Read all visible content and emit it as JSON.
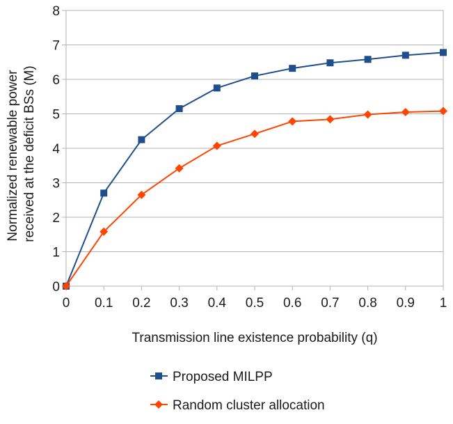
{
  "chart_data": {
    "type": "line",
    "title": "",
    "xlabel": "Transmission line existence probability (q)",
    "ylabel_lines": [
      "Normalized renewable power",
      "received at the deficit BSs (M)"
    ],
    "xlim": [
      0,
      1
    ],
    "ylim": [
      0,
      8
    ],
    "x_ticks": [
      "0",
      "0.1",
      "0.2",
      "0.3",
      "0.4",
      "0.5",
      "0.6",
      "0.7",
      "0.8",
      "0.9",
      "1"
    ],
    "y_ticks": [
      "0",
      "1",
      "2",
      "3",
      "4",
      "5",
      "6",
      "7",
      "8"
    ],
    "grid": "horizontal",
    "legend_position": "bottom",
    "x": [
      0,
      0.1,
      0.2,
      0.3,
      0.4,
      0.5,
      0.6,
      0.7,
      0.8,
      0.9,
      1.0
    ],
    "series": [
      {
        "name": "Proposed MILPP",
        "marker": "square",
        "color": "#1f4e8c",
        "values": [
          0,
          2.7,
          4.25,
          5.15,
          5.75,
          6.1,
          6.32,
          6.48,
          6.58,
          6.7,
          6.78
        ]
      },
      {
        "name": "Random cluster allocation",
        "marker": "diamond",
        "color": "#ff4500",
        "values": [
          0,
          1.58,
          2.65,
          3.42,
          4.07,
          4.42,
          4.78,
          4.84,
          4.98,
          5.05,
          5.08
        ]
      }
    ]
  }
}
